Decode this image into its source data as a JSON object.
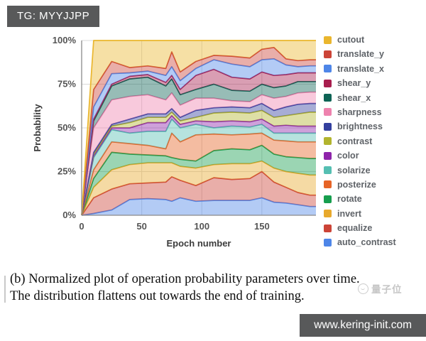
{
  "page": {
    "badge": "TG: MYYJJPP",
    "watermark_text": "量子位",
    "footer_url": "www.kering-init.com"
  },
  "caption": {
    "line1": "(b) Normalized plot of operation probability parameters over time.",
    "line2": "The distribution flattens out towards the end of training."
  },
  "chart_data": {
    "type": "area",
    "stacked": true,
    "normalized": true,
    "title": "",
    "xlabel": "Epoch number",
    "ylabel": "Probability",
    "xlim": [
      0,
      195
    ],
    "ylim_percent": [
      0,
      100
    ],
    "x_ticks": [
      0,
      50,
      100,
      150
    ],
    "y_ticks": [
      "0%",
      "25%",
      "50%",
      "75%",
      "100%"
    ],
    "grid": true,
    "legend_position": "right",
    "series_order_note": "series listed top-to-bottom as in legend; last series is the bottom stacked layer; values are percent and sum to 100 at each x (all 0 at epoch 0)",
    "x": [
      0,
      10,
      25,
      40,
      55,
      70,
      75,
      82,
      95,
      110,
      125,
      140,
      150,
      160,
      170,
      180,
      190,
      195
    ],
    "series": [
      {
        "name": "cutout",
        "color": "#EAB62E",
        "values": [
          0,
          28,
          12,
          15.5,
          14.5,
          16,
          6.5,
          18,
          12,
          8.5,
          9,
          10,
          5,
          4,
          10.5,
          11.5,
          11,
          11
        ]
      },
      {
        "name": "translate_y",
        "color": "#CC4437",
        "values": [
          0,
          10,
          7,
          3,
          3,
          4,
          8.5,
          5,
          4,
          2.5,
          4.5,
          5,
          6,
          6.5,
          3.5,
          3.5,
          3.5,
          3.5
        ]
      },
      {
        "name": "translate_x",
        "color": "#4E86E8",
        "values": [
          0,
          7,
          6,
          2,
          2,
          4,
          5,
          5,
          4,
          5.5,
          7.5,
          7,
          7,
          9.5,
          5.5,
          3.5,
          4,
          4
        ]
      },
      {
        "name": "shear_y",
        "color": "#A81E4E",
        "values": [
          0,
          1,
          1,
          1.5,
          1.5,
          2,
          2,
          3,
          8,
          8.5,
          7.5,
          7,
          7,
          7,
          6.5,
          5,
          5,
          5
        ]
      },
      {
        "name": "shear_x",
        "color": "#0E6455",
        "values": [
          0,
          4,
          8,
          10,
          10,
          8,
          8,
          6,
          5,
          8,
          6,
          6,
          6,
          6,
          6,
          6.5,
          6,
          6
        ]
      },
      {
        "name": "sharpness",
        "color": "#EE82AE",
        "values": [
          0,
          14,
          14,
          13,
          11,
          8,
          9,
          7,
          7,
          5.5,
          3.5,
          3.5,
          5,
          7,
          6,
          6.5,
          6.5,
          6.5
        ]
      },
      {
        "name": "brightness",
        "color": "#333F9E",
        "values": [
          0,
          1,
          1,
          2,
          2,
          2,
          2,
          2,
          4,
          3,
          3,
          3,
          4,
          4,
          5,
          5.5,
          5,
          5
        ]
      },
      {
        "name": "contrast",
        "color": "#B2B42E",
        "values": [
          0,
          1,
          1,
          3,
          3,
          3,
          2,
          2,
          2,
          5,
          5,
          5,
          5,
          5,
          5.5,
          7,
          8,
          8
        ]
      },
      {
        "name": "color",
        "color": "#8E24AA",
        "values": [
          0,
          1,
          1,
          3,
          5,
          5,
          2,
          2,
          2,
          3.5,
          3,
          3,
          3,
          4,
          4.5,
          4,
          4,
          4
        ]
      },
      {
        "name": "solarize",
        "color": "#55BFB2",
        "values": [
          0,
          7,
          7,
          6,
          8,
          10,
          8,
          8,
          6,
          3.5,
          5,
          4,
          5,
          4,
          4.5,
          5,
          5,
          5
        ]
      },
      {
        "name": "posterize",
        "color": "#E66426",
        "values": [
          0,
          5,
          6,
          6,
          5.5,
          4,
          14,
          10,
          15,
          9.5,
          8,
          9,
          7,
          8,
          9,
          9,
          9.5,
          9.5
        ]
      },
      {
        "name": "rotate",
        "color": "#179E4E",
        "values": [
          0,
          5,
          10,
          6,
          4.5,
          4,
          3,
          4,
          4,
          8,
          8.5,
          8,
          9,
          8,
          8.5,
          9,
          9.5,
          9.5
        ]
      },
      {
        "name": "invert",
        "color": "#E8A92D",
        "values": [
          0,
          6,
          11,
          11,
          11.5,
          11,
          8,
          8,
          10,
          7.5,
          9,
          8.5,
          6,
          8,
          9,
          11,
          11.5,
          11.5
        ]
      },
      {
        "name": "equalize",
        "color": "#CC4437",
        "values": [
          0,
          9,
          12,
          9,
          9,
          10,
          14,
          10,
          9,
          13,
          12,
          12.5,
          15,
          11.5,
          9,
          7,
          6.5,
          6.5
        ]
      },
      {
        "name": "auto_contrast",
        "color": "#4E86E8",
        "values": [
          0,
          1,
          3,
          9,
          9.5,
          9,
          8,
          10,
          8,
          8.5,
          8.5,
          8.5,
          10,
          7.5,
          7,
          6,
          5,
          5
        ]
      }
    ],
    "colors": {
      "grid": "#d9d9d9",
      "axis": "#8a8a8a",
      "tick_text": "#555555",
      "axis_title_text": "#3c3c3c"
    }
  }
}
